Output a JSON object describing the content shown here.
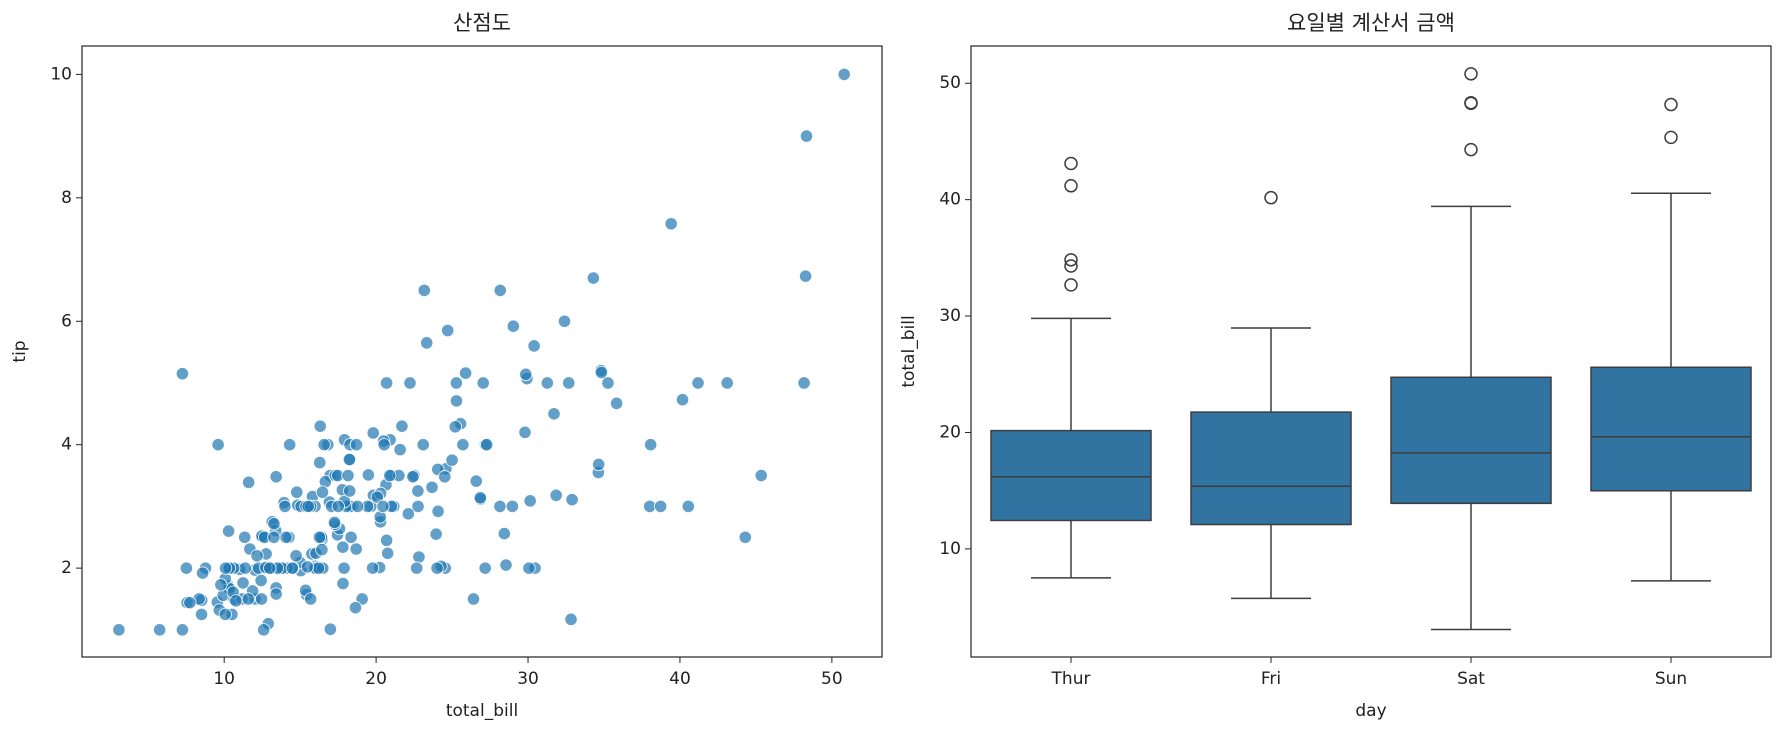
{
  "chart_data": [
    {
      "type": "scatter",
      "title": "산점도",
      "x_label": "total_bill",
      "y_label": "tip",
      "color": "#1f77b4",
      "xlim": [
        0.64,
        53.3
      ],
      "xticks": [
        10,
        20,
        30,
        40,
        50
      ],
      "ylim": [
        0.56,
        10.46
      ],
      "yticks": [
        2,
        4,
        6,
        8,
        10
      ],
      "x": [
        16.99,
        10.34,
        21.01,
        23.68,
        24.59,
        25.29,
        8.77,
        26.88,
        15.04,
        14.78,
        10.27,
        35.26,
        15.42,
        18.43,
        14.83,
        21.58,
        10.33,
        16.29,
        16.97,
        20.65,
        17.92,
        20.29,
        15.77,
        39.42,
        19.82,
        17.81,
        13.37,
        12.69,
        21.7,
        19.65,
        9.55,
        18.35,
        15.06,
        20.69,
        17.78,
        24.06,
        16.31,
        16.93,
        18.69,
        31.27,
        16.04,
        17.46,
        13.94,
        9.68,
        30.4,
        18.29,
        22.23,
        32.4,
        28.55,
        18.04,
        12.54,
        10.29,
        34.81,
        9.94,
        25.56,
        19.49,
        38.01,
        26.41,
        11.24,
        48.27,
        20.29,
        13.81,
        11.02,
        18.29,
        17.59,
        20.08,
        16.45,
        3.07,
        20.23,
        15.01,
        12.02,
        17.07,
        26.86,
        25.28,
        14.73,
        10.51,
        17.92,
        27.2,
        22.76,
        17.29,
        19.44,
        16.66,
        10.07,
        32.68,
        15.98,
        34.83,
        13.03,
        18.28,
        24.71,
        21.16,
        28.97,
        22.49,
        5.75,
        16.32,
        22.75,
        40.17,
        27.28,
        12.03,
        21.01,
        12.46,
        11.35,
        15.38,
        44.3,
        22.42,
        20.92,
        15.36,
        20.49,
        25.21,
        18.24,
        14.31,
        14.0,
        7.25,
        38.07,
        23.95,
        25.71,
        17.31,
        29.93,
        10.65,
        12.43,
        24.08,
        11.69,
        13.42,
        14.26,
        15.95,
        12.48,
        29.8,
        8.52,
        14.52,
        11.38,
        22.82,
        19.08,
        20.27,
        11.17,
        12.26,
        18.26,
        8.51,
        10.33,
        14.15,
        16.0,
        13.16,
        17.47,
        34.3,
        41.19,
        27.05,
        16.43,
        8.35,
        18.64,
        11.87,
        9.78,
        7.51,
        14.07,
        13.13,
        17.26,
        24.55,
        19.77,
        29.85,
        48.17,
        25.0,
        13.39,
        16.49,
        21.5,
        12.66,
        16.21,
        13.81,
        17.51,
        24.52,
        20.76,
        31.71,
        10.59,
        10.63,
        50.81,
        15.81,
        7.25,
        31.85,
        16.82,
        32.9,
        17.89,
        14.48,
        9.6,
        34.63,
        34.65,
        23.33,
        45.35,
        23.17,
        40.55,
        20.69,
        20.9,
        30.46,
        18.15,
        23.1,
        15.69,
        19.81,
        28.44,
        15.48,
        16.58,
        7.56,
        10.34,
        43.11,
        13.0,
        13.51,
        18.71,
        12.74,
        13.0,
        16.4,
        20.53,
        16.47,
        26.59,
        38.73,
        24.27,
        12.76,
        30.06,
        25.89,
        48.33,
        13.27,
        28.17,
        12.9,
        28.15,
        11.59,
        7.74,
        30.14,
        12.16,
        13.42,
        8.58,
        15.98,
        13.42,
        16.27,
        10.09,
        20.45,
        13.28,
        22.12,
        24.01,
        15.69,
        11.61,
        10.77,
        15.53,
        10.07,
        12.6,
        32.83,
        35.83,
        29.03,
        27.18,
        22.67,
        17.82,
        18.78
      ],
      "values": [
        1.01,
        1.66,
        3.5,
        3.31,
        3.61,
        4.71,
        2.0,
        3.12,
        1.96,
        3.23,
        1.71,
        5.0,
        1.57,
        3.0,
        3.02,
        3.92,
        1.67,
        3.71,
        3.5,
        3.35,
        4.08,
        2.75,
        2.23,
        7.58,
        3.18,
        2.34,
        2.0,
        2.0,
        4.3,
        3.0,
        1.45,
        2.5,
        3.0,
        2.45,
        3.27,
        3.6,
        2.0,
        3.07,
        2.31,
        5.0,
        2.24,
        2.54,
        3.06,
        1.32,
        5.6,
        3.0,
        5.0,
        6.0,
        2.05,
        3.0,
        2.5,
        2.6,
        5.2,
        1.56,
        4.34,
        3.51,
        3.0,
        1.5,
        1.76,
        6.73,
        3.21,
        2.0,
        1.98,
        3.76,
        2.64,
        3.15,
        2.47,
        1.0,
        2.01,
        2.09,
        1.97,
        3.0,
        3.14,
        5.0,
        2.2,
        1.25,
        3.08,
        4.0,
        3.0,
        2.71,
        3.0,
        3.4,
        1.83,
        5.0,
        2.03,
        5.17,
        2.0,
        4.0,
        5.85,
        3.0,
        3.0,
        3.5,
        1.0,
        4.3,
        3.25,
        4.73,
        4.0,
        1.5,
        3.0,
        1.5,
        2.5,
        3.0,
        2.5,
        3.48,
        4.08,
        1.64,
        4.06,
        4.29,
        3.76,
        4.0,
        3.0,
        1.0,
        4.0,
        2.55,
        4.0,
        3.5,
        5.07,
        1.5,
        1.8,
        2.92,
        2.31,
        1.68,
        2.5,
        2.0,
        2.52,
        4.2,
        1.48,
        2.0,
        2.0,
        2.18,
        1.5,
        2.83,
        1.5,
        2.0,
        3.25,
        1.25,
        2.0,
        2.0,
        2.0,
        2.75,
        3.5,
        6.7,
        5.0,
        5.0,
        2.3,
        1.5,
        1.36,
        1.63,
        1.73,
        2.0,
        2.5,
        2.0,
        2.74,
        2.0,
        2.0,
        5.14,
        5.0,
        3.75,
        2.61,
        2.0,
        3.5,
        2.5,
        2.0,
        2.0,
        3.0,
        3.48,
        2.24,
        4.5,
        1.61,
        2.0,
        10.0,
        3.16,
        5.15,
        3.18,
        4.0,
        3.11,
        2.0,
        2.0,
        4.0,
        3.55,
        3.68,
        5.65,
        3.5,
        6.5,
        3.0,
        5.0,
        3.5,
        2.0,
        3.5,
        4.0,
        1.5,
        4.19,
        2.56,
        2.02,
        4.0,
        1.44,
        2.0,
        5.0,
        2.0,
        2.0,
        4.0,
        2.01,
        2.0,
        2.5,
        4.0,
        3.23,
        3.41,
        3.0,
        2.03,
        2.23,
        2.0,
        5.16,
        9.0,
        2.5,
        6.5,
        1.1,
        3.0,
        1.5,
        1.44,
        3.09,
        2.2,
        3.48,
        1.92,
        3.0,
        1.58,
        2.5,
        2.0,
        3.0,
        2.72,
        2.88,
        2.0,
        3.0,
        3.39,
        1.47,
        3.0,
        1.25,
        1.0,
        1.17,
        4.67,
        5.92,
        2.0,
        2.0,
        1.75,
        3.0
      ]
    },
    {
      "type": "box",
      "title": "요일별 계산서 금액",
      "x_label": "day",
      "y_label": "total_bill",
      "color": "#3274a1",
      "ylim": [
        0.71,
        53.2
      ],
      "yticks": [
        10,
        20,
        30,
        40,
        50
      ],
      "categories": [
        "Thur",
        "Fri",
        "Sat",
        "Sun"
      ],
      "boxes": [
        {
          "min": 7.51,
          "q1": 12.44,
          "median": 16.2,
          "q3": 20.16,
          "max": 29.8,
          "outliers": [
            32.68,
            34.83,
            34.3,
            41.19,
            43.11
          ]
        },
        {
          "min": 5.75,
          "q1": 12.09,
          "median": 15.38,
          "q3": 21.75,
          "max": 28.97,
          "outliers": [
            40.17
          ]
        },
        {
          "min": 3.07,
          "q1": 13.91,
          "median": 18.24,
          "q3": 24.74,
          "max": 39.42,
          "outliers": [
            44.3,
            48.27,
            48.33,
            50.81
          ]
        },
        {
          "min": 7.25,
          "q1": 14.99,
          "median": 19.63,
          "q3": 25.6,
          "max": 40.55,
          "outliers": [
            45.35,
            48.17
          ]
        }
      ]
    }
  ]
}
